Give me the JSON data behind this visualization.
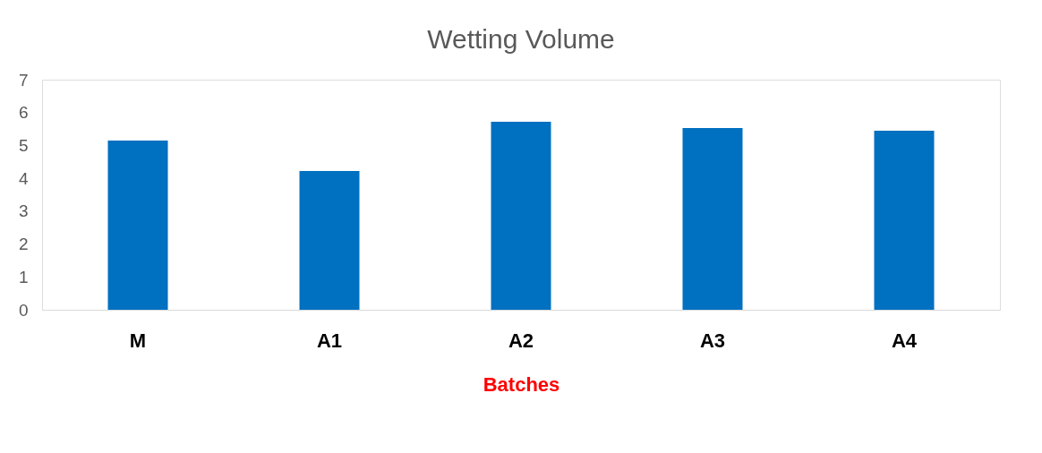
{
  "chart_data": {
    "type": "bar",
    "title": "Wetting Volume",
    "xlabel": "Batches",
    "categories": [
      "M",
      "A1",
      "A2",
      "A3",
      "A4"
    ],
    "values": [
      5.15,
      4.22,
      5.72,
      5.53,
      5.45
    ],
    "color": "#0070c0",
    "ylim": [
      0,
      7
    ],
    "yticks": [
      0,
      1,
      2,
      3,
      4,
      5,
      6,
      7
    ],
    "grid": false
  }
}
